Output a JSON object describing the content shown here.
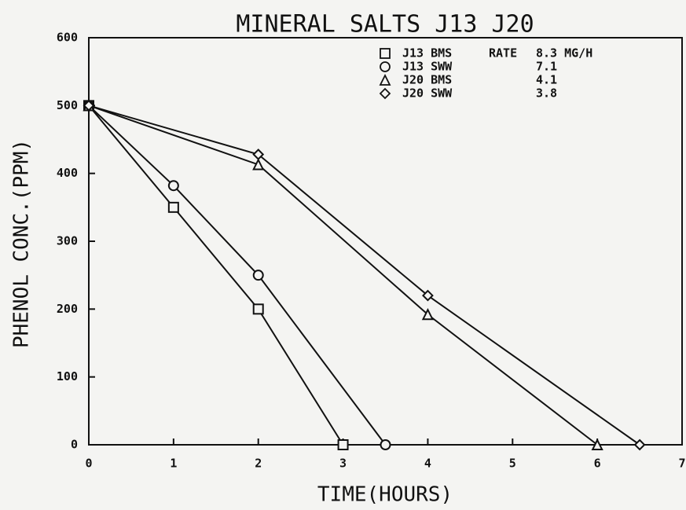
{
  "chart_data": {
    "type": "line",
    "title": "MINERAL SALTS J13 J20",
    "xlabel": "TIME(HOURS)",
    "ylabel": "PHENOL CONC.(PPM)",
    "legend_header": "RATE",
    "xlim": [
      0,
      7
    ],
    "xticks": [
      0,
      1,
      2,
      3,
      4,
      5,
      6,
      7
    ],
    "ylim": [
      0,
      600
    ],
    "yticks": [
      0,
      100,
      200,
      300,
      400,
      500,
      600
    ],
    "series": [
      {
        "name": "J13 BMS",
        "rate": "8.3 MG/H",
        "marker": "square",
        "color": "#111111",
        "x": [
          0,
          1,
          2,
          3
        ],
        "values": [
          500,
          350,
          200,
          0
        ]
      },
      {
        "name": "J13 SWW",
        "rate": "7.1",
        "marker": "circle",
        "color": "#111111",
        "x": [
          0,
          1,
          2,
          3.5
        ],
        "values": [
          500,
          382,
          250,
          0
        ]
      },
      {
        "name": "J20 BMS",
        "rate": "4.1",
        "marker": "triangle",
        "color": "#111111",
        "x": [
          0,
          2,
          4,
          6
        ],
        "values": [
          500,
          413,
          192,
          0
        ]
      },
      {
        "name": "J20 SWW",
        "rate": "3.8",
        "marker": "diamond",
        "color": "#111111",
        "x": [
          0,
          2,
          4,
          6.5
        ],
        "values": [
          500,
          428,
          220,
          0
        ]
      }
    ]
  }
}
